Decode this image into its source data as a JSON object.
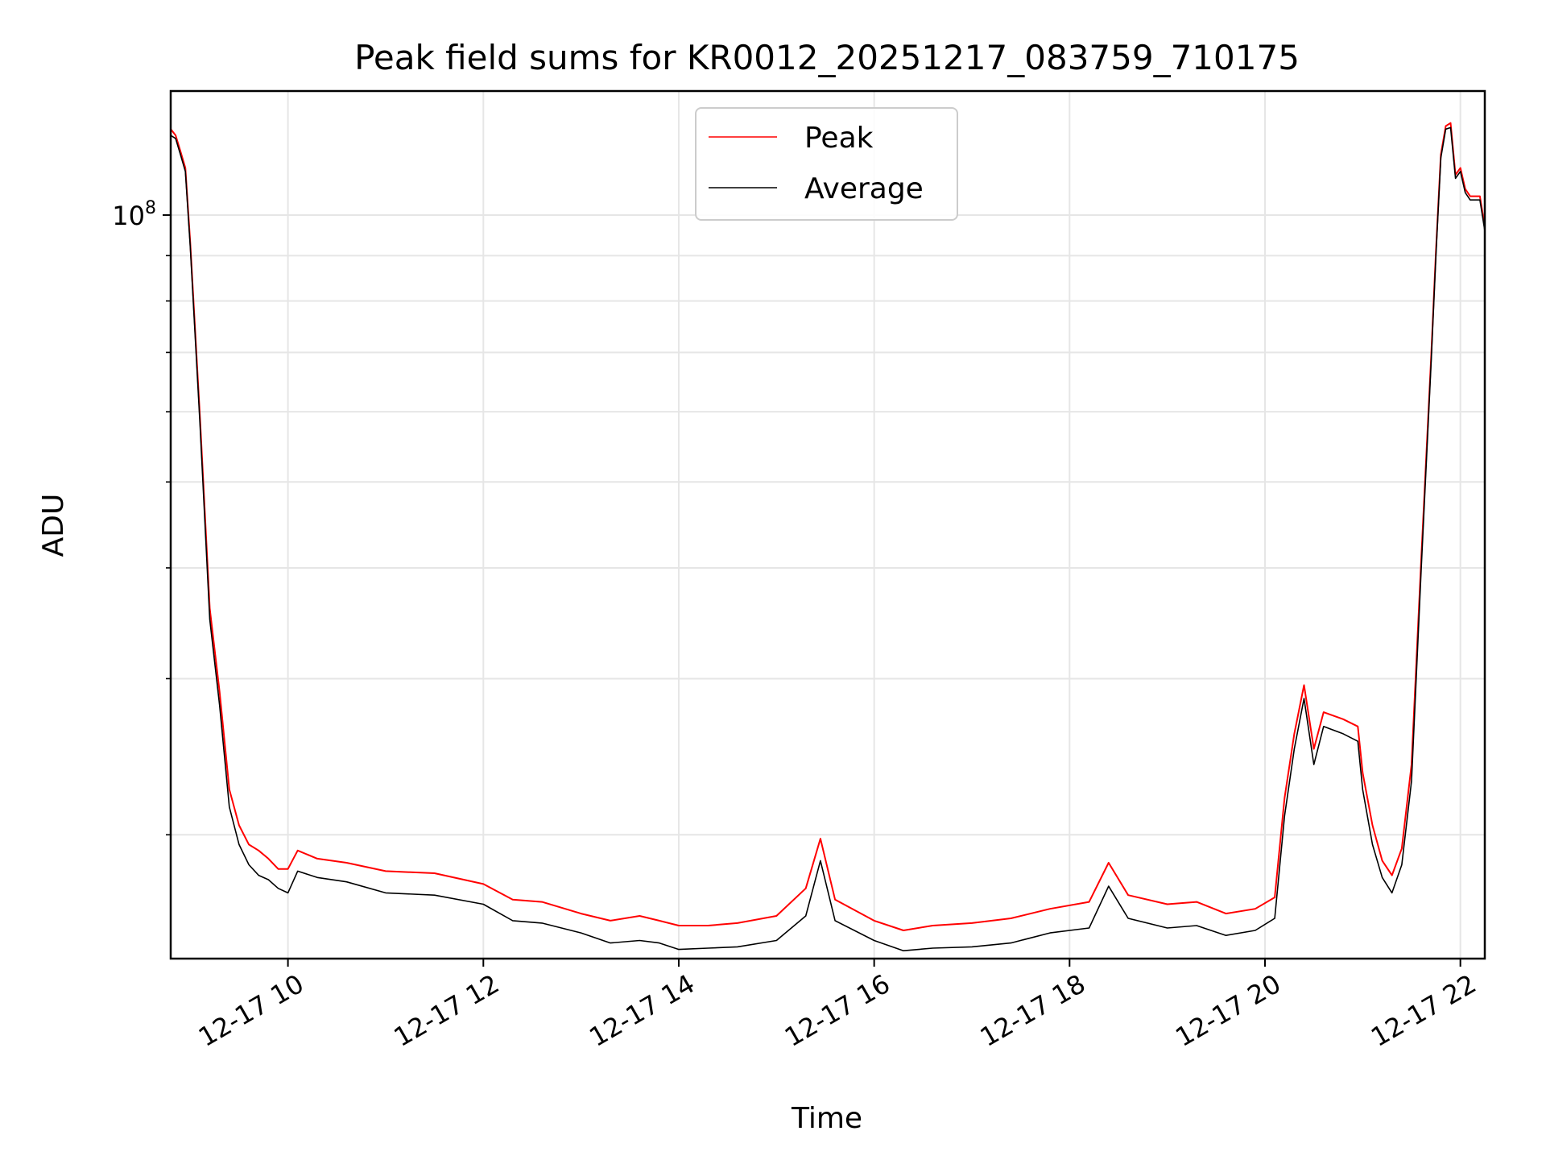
{
  "chart_data": {
    "type": "line",
    "title": "Peak field sums for KR0012_20251217_083759_710175",
    "xlabel": "Time",
    "ylabel": "ADU",
    "yscale": "log",
    "xlim": [
      8.8,
      22.25
    ],
    "ylim": [
      14500000,
      138000000
    ],
    "x_unit": "hours",
    "x_ticks": [
      {
        "value": 10,
        "label": "12-17 10"
      },
      {
        "value": 12,
        "label": "12-17 12"
      },
      {
        "value": 14,
        "label": "12-17 14"
      },
      {
        "value": 16,
        "label": "12-17 16"
      },
      {
        "value": 18,
        "label": "12-17 18"
      },
      {
        "value": 20,
        "label": "12-17 20"
      },
      {
        "value": 22,
        "label": "12-17 22"
      }
    ],
    "y_major_ticks": [
      {
        "value": 100000000,
        "label_base": "10",
        "label_exp": "8"
      }
    ],
    "y_minor_ticks": [
      20000000,
      30000000,
      40000000,
      50000000,
      60000000,
      70000000,
      80000000,
      90000000
    ],
    "grid": true,
    "legend": {
      "location": "upper-center",
      "entries": [
        "Peak",
        "Average"
      ]
    },
    "colors": {
      "Peak": "#ff0000",
      "Average": "#000000"
    },
    "x": [
      8.8,
      8.85,
      8.9,
      8.95,
      9.0,
      9.1,
      9.2,
      9.3,
      9.4,
      9.5,
      9.6,
      9.7,
      9.8,
      9.9,
      10.0,
      10.1,
      10.3,
      10.6,
      11.0,
      11.5,
      12.0,
      12.3,
      12.6,
      13.0,
      13.3,
      13.6,
      13.8,
      14.0,
      14.3,
      14.6,
      15.0,
      15.3,
      15.45,
      15.6,
      16.0,
      16.3,
      16.6,
      17.0,
      17.4,
      17.8,
      18.2,
      18.4,
      18.6,
      19.0,
      19.3,
      19.6,
      19.9,
      20.1,
      20.2,
      20.3,
      20.4,
      20.5,
      20.6,
      20.8,
      20.95,
      21.0,
      21.1,
      21.2,
      21.3,
      21.4,
      21.5,
      21.6,
      21.7,
      21.75,
      21.8,
      21.85,
      21.9,
      21.95,
      22.0,
      22.05,
      22.1,
      22.2,
      22.25
    ],
    "series": [
      {
        "name": "Average",
        "values": [
          123000000,
          122000000,
          117000000,
          112000000,
          92000000,
          58000000,
          35000000,
          28000000,
          21500000,
          19500000,
          18500000,
          18000000,
          17800000,
          17400000,
          17200000,
          18200000,
          17900000,
          17700000,
          17200000,
          17100000,
          16700000,
          16000000,
          15900000,
          15500000,
          15100000,
          15200000,
          15100000,
          14850000,
          14900000,
          14950000,
          15200000,
          16200000,
          18700000,
          16000000,
          15200000,
          14800000,
          14900000,
          14950000,
          15100000,
          15500000,
          15700000,
          17500000,
          16100000,
          15700000,
          15800000,
          15400000,
          15600000,
          16100000,
          21000000,
          25000000,
          28500000,
          24000000,
          26500000,
          26000000,
          25500000,
          22500000,
          19500000,
          17900000,
          17200000,
          18500000,
          23000000,
          40000000,
          68000000,
          90000000,
          116000000,
          125000000,
          125500000,
          110000000,
          112000000,
          106000000,
          104000000,
          104000000,
          96000000
        ]
      },
      {
        "name": "Peak",
        "values": [
          125000000,
          123000000,
          118000000,
          113000000,
          93000000,
          59000000,
          36000000,
          29000000,
          22500000,
          20500000,
          19500000,
          19200000,
          18800000,
          18300000,
          18300000,
          19200000,
          18800000,
          18600000,
          18200000,
          18100000,
          17600000,
          16900000,
          16800000,
          16300000,
          16000000,
          16200000,
          16000000,
          15800000,
          15800000,
          15900000,
          16200000,
          17400000,
          19800000,
          16900000,
          16000000,
          15600000,
          15800000,
          15900000,
          16100000,
          16500000,
          16800000,
          18600000,
          17100000,
          16700000,
          16800000,
          16300000,
          16500000,
          17000000,
          22000000,
          26000000,
          29500000,
          25000000,
          27500000,
          27000000,
          26500000,
          23500000,
          20500000,
          18700000,
          18000000,
          19300000,
          24000000,
          41000000,
          69000000,
          91000000,
          117000000,
          126000000,
          127000000,
          111000000,
          113000000,
          107000000,
          105000000,
          105000000,
          97000000
        ]
      }
    ]
  }
}
